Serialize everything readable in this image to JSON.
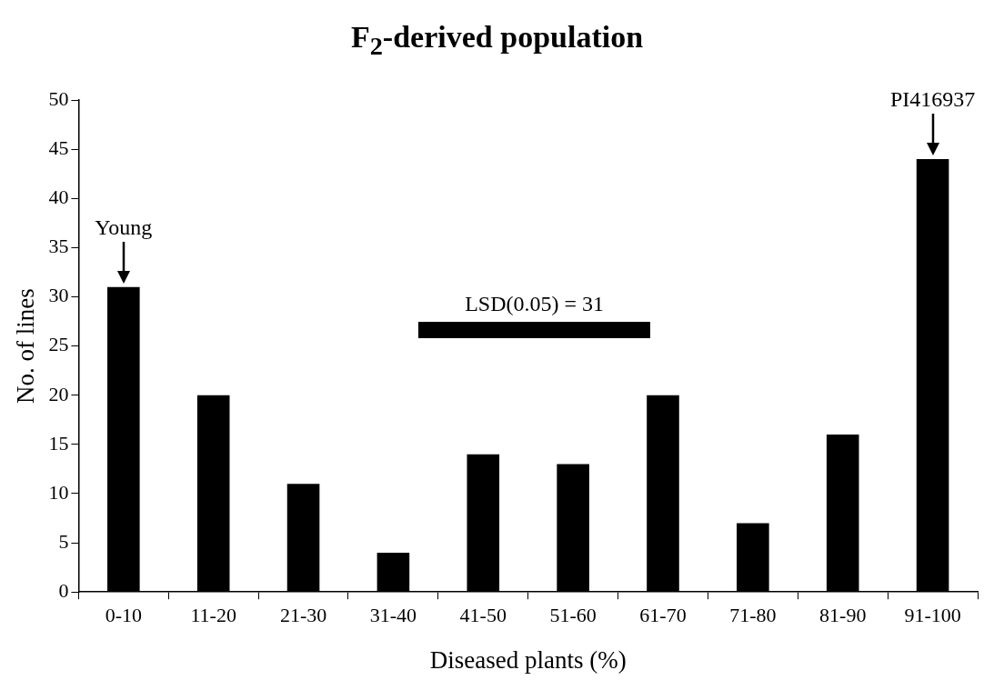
{
  "chart_data": {
    "type": "bar",
    "title": "F$_{2}$-derived population",
    "xlabel": "Diseased plants (%)",
    "ylabel": "No. of lines",
    "categories": [
      "0-10",
      "11-20",
      "21-30",
      "31-40",
      "41-50",
      "51-60",
      "61-70",
      "71-80",
      "81-90",
      "91-100"
    ],
    "values": [
      31,
      20,
      11,
      4,
      14,
      13,
      20,
      7,
      16,
      44
    ],
    "color": "#000000",
    "ylim": [
      0,
      50
    ],
    "yticks": [
      0,
      5,
      10,
      15,
      20,
      25,
      30,
      35,
      40,
      45,
      50
    ],
    "grid": false,
    "legend": false,
    "annotations": [
      {
        "text": "Young",
        "x": "0-10",
        "y": 31
      },
      {
        "text": "PI416937",
        "x": "91-100",
        "y": 44
      },
      "LSD(0.05) = 31"
    ]
  }
}
